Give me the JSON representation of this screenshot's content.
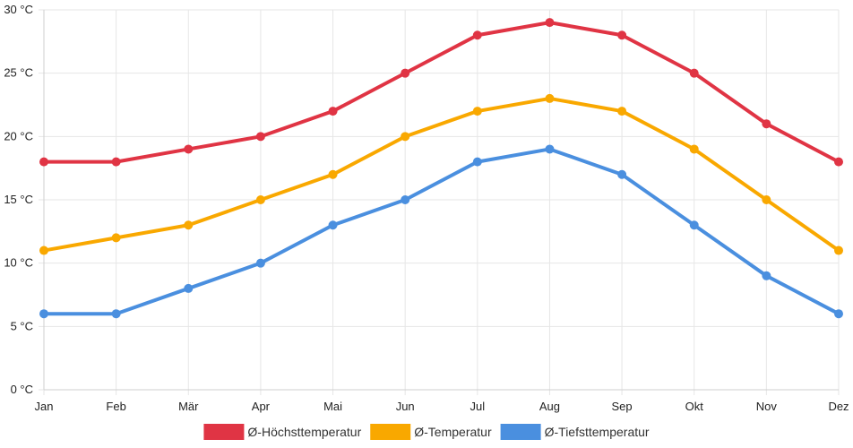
{
  "chart_data": {
    "type": "line",
    "categories": [
      "Jan",
      "Feb",
      "Mär",
      "Apr",
      "Mai",
      "Jun",
      "Jul",
      "Aug",
      "Sep",
      "Okt",
      "Nov",
      "Dez"
    ],
    "series": [
      {
        "name": "Ø-Höchsttemperatur",
        "color": "#e03444",
        "values": [
          18,
          18,
          19,
          20,
          22,
          25,
          28,
          29,
          28,
          25,
          21,
          18
        ]
      },
      {
        "name": "Ø-Temperatur",
        "color": "#f9a800",
        "values": [
          11,
          12,
          13,
          15,
          17,
          20,
          22,
          23,
          22,
          19,
          15,
          11
        ]
      },
      {
        "name": "Ø-Tiefsttemperatur",
        "color": "#4a8fdf",
        "values": [
          6,
          6,
          8,
          10,
          13,
          15,
          18,
          19,
          17,
          13,
          9,
          6
        ]
      }
    ],
    "y_ticks": [
      0,
      5,
      10,
      15,
      20,
      25,
      30
    ],
    "y_unit": "°C",
    "ylim": [
      0,
      30
    ],
    "grid": true,
    "legend": "bottom-center",
    "title": "",
    "xlabel": "",
    "ylabel": ""
  }
}
